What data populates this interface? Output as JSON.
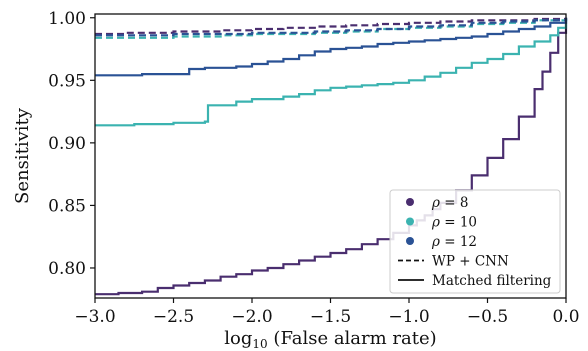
{
  "chart_data": {
    "type": "line",
    "xlabel_prefix": "log",
    "xlabel_sub": "10",
    "xlabel_rest": " (False alarm rate)",
    "ylabel": "Sensitivity",
    "xlim": [
      -3.0,
      0.0
    ],
    "ylim": [
      0.776,
      1.003
    ],
    "x_ticks": [
      -3.0,
      -2.5,
      -2.0,
      -1.5,
      -1.0,
      -0.5,
      0.0
    ],
    "x_tick_labels": [
      "−3.0",
      "−2.5",
      "−2.0",
      "−1.5",
      "−1.0",
      "−0.5",
      "0.0"
    ],
    "y_ticks": [
      0.8,
      0.85,
      0.9,
      0.95,
      1.0
    ],
    "y_tick_labels": [
      "0.80",
      "0.85",
      "0.90",
      "0.95",
      "1.00"
    ],
    "grid": false,
    "legend_position": "bottom-right",
    "legend": {
      "rho_symbol": "ρ",
      "rho_entries": [
        {
          "label": "= 8",
          "color": "#4a2e6f"
        },
        {
          "label": "= 10",
          "color": "#3bb3b0"
        },
        {
          "label": "= 12",
          "color": "#2a5295"
        }
      ],
      "style_entries": [
        {
          "label": "WP + CNN",
          "linestyle": "dashed"
        },
        {
          "label": "Matched filtering",
          "linestyle": "solid"
        }
      ]
    },
    "series": [
      {
        "rho": 8,
        "method": "Matched filtering",
        "color": "#4a2e6f",
        "linestyle": "solid",
        "step": true,
        "x": [
          -3.0,
          -2.9,
          -2.85,
          -2.7,
          -2.6,
          -2.5,
          -2.4,
          -2.3,
          -2.2,
          -2.1,
          -2.0,
          -1.9,
          -1.8,
          -1.7,
          -1.6,
          -1.5,
          -1.4,
          -1.3,
          -1.2,
          -1.1,
          -1.0,
          -0.95,
          -0.9,
          -0.85,
          -0.8,
          -0.7,
          -0.6,
          -0.5,
          -0.4,
          -0.3,
          -0.2,
          -0.15,
          -0.1,
          -0.05,
          0.0
        ],
        "y": [
          0.779,
          0.779,
          0.78,
          0.781,
          0.784,
          0.786,
          0.788,
          0.79,
          0.793,
          0.795,
          0.798,
          0.8,
          0.803,
          0.806,
          0.809,
          0.812,
          0.815,
          0.819,
          0.823,
          0.828,
          0.834,
          0.838,
          0.842,
          0.847,
          0.852,
          0.862,
          0.874,
          0.888,
          0.903,
          0.921,
          0.943,
          0.957,
          0.972,
          0.988,
          1.0
        ]
      },
      {
        "rho": 10,
        "method": "Matched filtering",
        "color": "#3bb3b0",
        "linestyle": "solid",
        "step": true,
        "x": [
          -3.0,
          -2.8,
          -2.75,
          -2.5,
          -2.3,
          -2.28,
          -2.1,
          -2.0,
          -1.8,
          -1.7,
          -1.6,
          -1.5,
          -1.4,
          -1.3,
          -1.2,
          -1.1,
          -1.0,
          -0.9,
          -0.8,
          -0.7,
          -0.6,
          -0.5,
          -0.4,
          -0.3,
          -0.2,
          -0.1,
          -0.05,
          0.0
        ],
        "y": [
          0.914,
          0.914,
          0.915,
          0.916,
          0.917,
          0.93,
          0.933,
          0.935,
          0.937,
          0.939,
          0.942,
          0.944,
          0.945,
          0.946,
          0.947,
          0.948,
          0.95,
          0.953,
          0.956,
          0.96,
          0.964,
          0.967,
          0.971,
          0.977,
          0.981,
          0.986,
          0.992,
          1.0
        ]
      },
      {
        "rho": 12,
        "method": "Matched filtering",
        "color": "#2a5295",
        "linestyle": "solid",
        "step": true,
        "x": [
          -3.0,
          -2.75,
          -2.7,
          -2.4,
          -2.3,
          -2.1,
          -2.0,
          -1.9,
          -1.8,
          -1.7,
          -1.6,
          -1.5,
          -1.4,
          -1.3,
          -1.2,
          -1.1,
          -1.0,
          -0.9,
          -0.8,
          -0.7,
          -0.6,
          -0.5,
          -0.4,
          -0.3,
          -0.2,
          -0.1,
          0.0
        ],
        "y": [
          0.954,
          0.954,
          0.955,
          0.959,
          0.96,
          0.961,
          0.963,
          0.965,
          0.967,
          0.97,
          0.973,
          0.975,
          0.976,
          0.977,
          0.979,
          0.98,
          0.981,
          0.982,
          0.983,
          0.984,
          0.985,
          0.987,
          0.989,
          0.991,
          0.993,
          0.996,
          0.999
        ]
      },
      {
        "rho": 8,
        "method": "WP + CNN",
        "color": "#4a2e6f",
        "linestyle": "dashed",
        "step": true,
        "x": [
          -3.0,
          -2.8,
          -2.5,
          -2.2,
          -2.0,
          -1.8,
          -1.6,
          -1.4,
          -1.2,
          -1.0,
          -0.8,
          -0.6,
          -0.4,
          -0.2,
          0.0
        ],
        "y": [
          0.987,
          0.988,
          0.989,
          0.99,
          0.991,
          0.992,
          0.993,
          0.994,
          0.995,
          0.996,
          0.997,
          0.998,
          0.998,
          0.999,
          1.0
        ]
      },
      {
        "rho": 10,
        "method": "WP + CNN",
        "color": "#3bb3b0",
        "linestyle": "dashed",
        "step": true,
        "x": [
          -3.0,
          -2.8,
          -2.5,
          -2.2,
          -2.0,
          -1.8,
          -1.6,
          -1.4,
          -1.2,
          -1.0,
          -0.8,
          -0.6,
          -0.4,
          -0.2,
          0.0
        ],
        "y": [
          0.984,
          0.984,
          0.985,
          0.986,
          0.987,
          0.987,
          0.988,
          0.989,
          0.991,
          0.992,
          0.993,
          0.995,
          0.996,
          0.998,
          0.999
        ]
      },
      {
        "rho": 12,
        "method": "WP + CNN",
        "color": "#2a5295",
        "linestyle": "dashed",
        "step": true,
        "x": [
          -3.0,
          -2.8,
          -2.5,
          -2.2,
          -2.0,
          -1.8,
          -1.6,
          -1.4,
          -1.2,
          -1.0,
          -0.8,
          -0.6,
          -0.4,
          -0.2,
          0.0
        ],
        "y": [
          0.986,
          0.986,
          0.987,
          0.987,
          0.988,
          0.988,
          0.989,
          0.99,
          0.991,
          0.993,
          0.994,
          0.996,
          0.997,
          0.998,
          1.0
        ]
      }
    ]
  }
}
